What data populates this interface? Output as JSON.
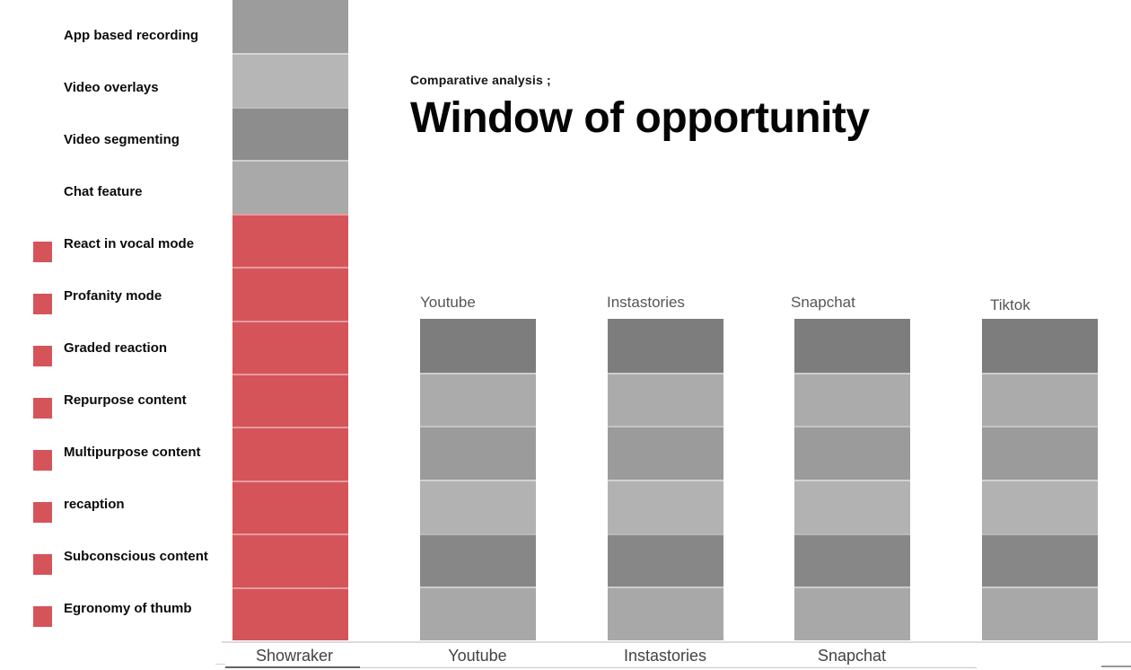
{
  "header": {
    "eyebrow": "Comparative analysis ;",
    "title": "Window of opportunity"
  },
  "legend": {
    "swatch_color": "#d5545a",
    "items": [
      {
        "label": "App based recording",
        "highlighted": false
      },
      {
        "label": "Video overlays",
        "highlighted": false
      },
      {
        "label": "Video segmenting",
        "highlighted": false
      },
      {
        "label": "Chat feature",
        "highlighted": false
      },
      {
        "label": "React in vocal mode",
        "highlighted": true
      },
      {
        "label": "Profanity mode",
        "highlighted": true
      },
      {
        "label": "Graded reaction",
        "highlighted": true
      },
      {
        "label": "Repurpose content",
        "highlighted": true
      },
      {
        "label": "Multipurpose content",
        "highlighted": true
      },
      {
        "label": "recaption",
        "highlighted": true
      },
      {
        "label": "Subconscious content",
        "highlighted": true
      },
      {
        "label": "Egronomy of thumb",
        "highlighted": true
      }
    ]
  },
  "bars": {
    "showraker": {
      "label": "Showraker",
      "segments": [
        "#9c9c9c",
        "#b6b6b6",
        "#8d8d8d",
        "#a9a9a9",
        "#d5545a",
        "#d5545a",
        "#d5545a",
        "#d5545a",
        "#d5545a",
        "#d5545a",
        "#d5545a",
        "#d5545a"
      ]
    },
    "competitor_segment_colors": [
      "#7d7d7d",
      "#ababab",
      "#9b9b9b",
      "#b2b2b2",
      "#878787",
      "#a8a8a8"
    ],
    "competitors": [
      {
        "label": "Youtube"
      },
      {
        "label": "Instastories"
      },
      {
        "label": "Snapchat"
      },
      {
        "label": "Tiktok"
      }
    ]
  },
  "axis": {
    "bottom_labels": [
      "Showraker",
      "Youtube",
      "Instastories",
      "Snapchat"
    ]
  },
  "chart_data": {
    "type": "bar",
    "subtype": "stacked",
    "title": "Window of opportunity",
    "subtitle": "Comparative analysis ;",
    "categories": [
      "Showraker",
      "Youtube",
      "Instastories",
      "Snapchat",
      "Tiktok"
    ],
    "values": [
      12,
      6,
      6,
      6,
      6
    ],
    "unit": "feature segments per platform stack",
    "features": [
      "App based recording",
      "Video overlays",
      "Video segmenting",
      "Chat feature",
      "React in vocal mode",
      "Profanity mode",
      "Graded reaction",
      "Repurpose content",
      "Multipurpose content",
      "recaption",
      "Subconscious content",
      "Egronomy of thumb"
    ],
    "highlighted_features": [
      "React in vocal mode",
      "Profanity mode",
      "Graded reaction",
      "Repurpose content",
      "Multipurpose content",
      "recaption",
      "Subconscious content",
      "Egronomy of thumb"
    ],
    "highlight_color": "#d5545a",
    "neutral_colors": [
      "#7d7d7d",
      "#ababab",
      "#9b9b9b",
      "#b2b2b2",
      "#878787",
      "#a8a8a8"
    ],
    "legend_position": "left",
    "grid": false,
    "x_axis_labels_below": [
      "Showraker",
      "Youtube",
      "Instastories",
      "Snapchat"
    ],
    "x_axis_labels_above": [
      "Youtube",
      "Instastories",
      "Snapchat",
      "Tiktok"
    ]
  }
}
